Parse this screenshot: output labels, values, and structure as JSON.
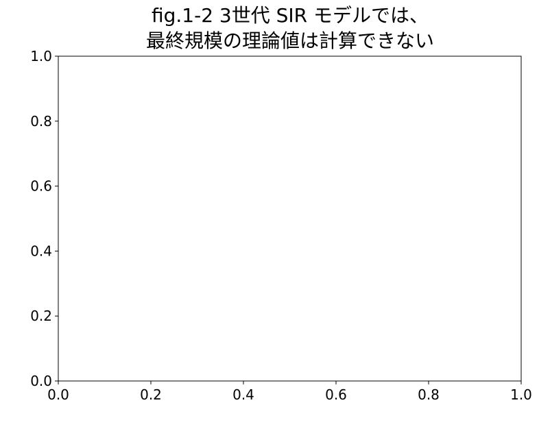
{
  "chart_data": {
    "type": "line",
    "title_lines": [
      "fig.1-2  3世代 SIR モデルでは、",
      "最終規模の理論値は計算できない"
    ],
    "xlabel": "",
    "ylabel": "",
    "xlim": [
      0.0,
      1.0
    ],
    "ylim": [
      0.0,
      1.0
    ],
    "x_ticks": [
      "0.0",
      "0.2",
      "0.4",
      "0.6",
      "0.8",
      "1.0"
    ],
    "y_ticks": [
      "0.0",
      "0.2",
      "0.4",
      "0.6",
      "0.8",
      "1.0"
    ],
    "series": [],
    "grid": false,
    "legend": "none"
  }
}
